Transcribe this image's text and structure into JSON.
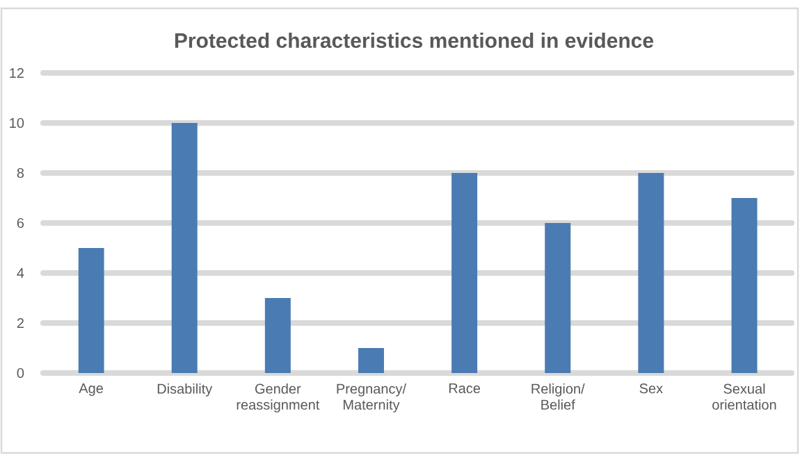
{
  "chart_data": {
    "type": "bar",
    "title": "Protected characteristics mentioned in evidence",
    "categories": [
      "Age",
      "Disability",
      "Gender reassignment",
      "Pregnancy/ Maternity",
      "Race",
      "Religion/ Belief",
      "Sex",
      "Sexual orientation"
    ],
    "values": [
      5,
      10,
      3,
      1,
      8,
      6,
      8,
      7
    ],
    "color": "#4a7bb2",
    "ylim": [
      0,
      12
    ],
    "yticks": [
      0,
      2,
      4,
      6,
      8,
      10,
      12
    ],
    "grid": "y"
  }
}
